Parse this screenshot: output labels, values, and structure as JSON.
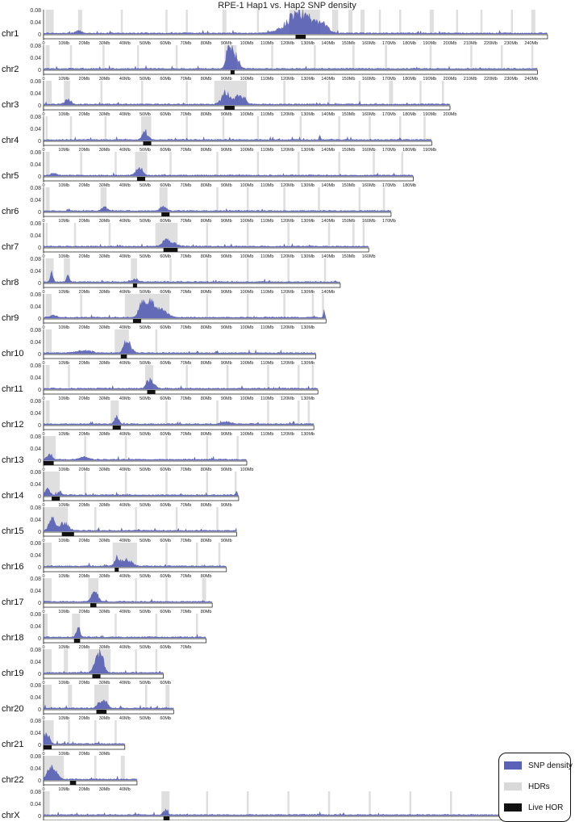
{
  "chart_data": {
    "type": "area",
    "title": "RPE-1 Hap1 vs. Hap2 SNP density",
    "y_ticks": [
      "0.08",
      "0.04",
      "0"
    ],
    "ylim": [
      0,
      0.08
    ],
    "x_unit": "Mb",
    "colors": {
      "snp": "#4e57b2",
      "hdr": "#d9d9d9",
      "hor": "#111111"
    },
    "legend": {
      "placement": "bottom-right",
      "items": [
        {
          "label": "SNP density",
          "color": "#5a62b8"
        },
        {
          "label": "HDRs",
          "color": "#d9d9d9"
        },
        {
          "label": "Live HOR",
          "color": "#111111"
        }
      ]
    },
    "chromosomes": [
      {
        "name": "chr1",
        "length": 248,
        "tick_max": 240,
        "hor": [
          124,
          129
        ],
        "peaks": [
          [
            125,
            0.08,
            8
          ],
          [
            133,
            0.035,
            6
          ],
          [
            138,
            0.02,
            3
          ],
          [
            17,
            0.01,
            2
          ]
        ],
        "hdrs": [
          [
            1,
            5
          ],
          [
            17,
            19
          ],
          [
            38,
            39
          ],
          [
            60,
            61
          ],
          [
            70,
            71
          ],
          [
            88,
            90
          ],
          [
            105,
            106
          ],
          [
            121,
            136
          ],
          [
            142,
            145
          ],
          [
            150,
            152
          ],
          [
            156,
            158
          ],
          [
            165,
            166
          ],
          [
            175,
            176
          ],
          [
            190,
            192
          ],
          [
            203,
            204
          ],
          [
            215,
            216
          ],
          [
            230,
            231
          ],
          [
            240,
            242
          ]
        ]
      },
      {
        "name": "chr2",
        "length": 243,
        "tick_max": 240,
        "hor": [
          92,
          94
        ],
        "peaks": [
          [
            93,
            0.08,
            3
          ],
          [
            91,
            0.05,
            1.5
          ]
        ],
        "hdrs": [
          [
            1,
            3
          ],
          [
            13,
            14
          ],
          [
            29,
            30
          ],
          [
            46,
            47
          ],
          [
            65,
            66
          ],
          [
            89,
            95
          ],
          [
            112,
            113
          ],
          [
            133,
            134
          ],
          [
            152,
            153
          ],
          [
            168,
            169
          ],
          [
            190,
            191
          ],
          [
            210,
            211
          ],
          [
            225,
            226
          ],
          [
            240,
            241
          ]
        ]
      },
      {
        "name": "chr3",
        "length": 200,
        "tick_max": 200,
        "hor": [
          89,
          94
        ],
        "peaks": [
          [
            90,
            0.05,
            3
          ],
          [
            96,
            0.04,
            2
          ],
          [
            99,
            0.025,
            1.5
          ],
          [
            12,
            0.02,
            2
          ]
        ],
        "hdrs": [
          [
            1,
            4
          ],
          [
            10,
            13
          ],
          [
            28,
            29
          ],
          [
            48,
            49
          ],
          [
            70,
            71
          ],
          [
            84,
            100
          ],
          [
            118,
            119
          ],
          [
            140,
            141
          ],
          [
            155,
            156
          ],
          [
            170,
            172
          ],
          [
            185,
            186
          ],
          [
            196,
            197
          ]
        ]
      },
      {
        "name": "chr4",
        "length": 191,
        "tick_max": 190,
        "hor": [
          49,
          53
        ],
        "peaks": [
          [
            50,
            0.035,
            2
          ],
          [
            136,
            0.025,
            0.5
          ]
        ],
        "hdrs": [
          [
            1,
            2
          ],
          [
            13,
            14
          ],
          [
            30,
            31
          ],
          [
            48,
            53
          ],
          [
            70,
            71
          ],
          [
            88,
            89
          ],
          [
            105,
            106
          ],
          [
            126,
            127
          ],
          [
            145,
            146
          ],
          [
            160,
            161
          ],
          [
            175,
            176
          ],
          [
            187,
            188
          ]
        ]
      },
      {
        "name": "chr5",
        "length": 182,
        "tick_max": 180,
        "hor": [
          46,
          50
        ],
        "peaks": [
          [
            47,
            0.04,
            2
          ],
          [
            5,
            0.01,
            2
          ]
        ],
        "hdrs": [
          [
            1,
            3
          ],
          [
            18,
            19
          ],
          [
            35,
            36
          ],
          [
            45,
            51
          ],
          [
            62,
            63
          ],
          [
            85,
            86
          ],
          [
            105,
            106
          ],
          [
            125,
            126
          ],
          [
            145,
            146
          ],
          [
            162,
            163
          ],
          [
            176,
            177
          ]
        ]
      },
      {
        "name": "chr6",
        "length": 171,
        "tick_max": 170,
        "hor": [
          58,
          62
        ],
        "peaks": [
          [
            59,
            0.02,
            2
          ],
          [
            30,
            0.015,
            2
          ]
        ],
        "hdrs": [
          [
            1,
            3
          ],
          [
            28,
            31
          ],
          [
            57,
            61
          ],
          [
            85,
            86
          ],
          [
            100,
            101
          ],
          [
            118,
            119
          ],
          [
            135,
            136
          ],
          [
            155,
            156
          ],
          [
            167,
            168
          ]
        ]
      },
      {
        "name": "chr7",
        "length": 160,
        "tick_max": 160,
        "hor": [
          59,
          66
        ],
        "peaks": [
          [
            62,
            0.02,
            4
          ],
          [
            60,
            0.015,
            2
          ]
        ],
        "hdrs": [
          [
            1,
            2
          ],
          [
            15,
            16
          ],
          [
            32,
            33
          ],
          [
            55,
            66
          ],
          [
            80,
            81
          ],
          [
            100,
            101
          ],
          [
            120,
            121
          ],
          [
            140,
            141
          ],
          [
            152,
            153
          ],
          [
            157,
            158
          ]
        ]
      },
      {
        "name": "chr8",
        "length": 146,
        "tick_max": 140,
        "hor": [
          44,
          46
        ],
        "peaks": [
          [
            4,
            0.04,
            1
          ],
          [
            12,
            0.025,
            1
          ],
          [
            45,
            0.015,
            2
          ]
        ],
        "hdrs": [
          [
            1,
            5
          ],
          [
            10,
            13
          ],
          [
            43,
            46
          ],
          [
            62,
            63
          ],
          [
            80,
            81
          ],
          [
            100,
            101
          ],
          [
            120,
            121
          ],
          [
            138,
            139
          ]
        ]
      },
      {
        "name": "chr9",
        "length": 139,
        "tick_max": 130,
        "hor": [
          44,
          48
        ],
        "peaks": [
          [
            52,
            0.08,
            3
          ],
          [
            48,
            0.05,
            2
          ],
          [
            58,
            0.03,
            4
          ],
          [
            138,
            0.04,
            0.4
          ],
          [
            5,
            0.01,
            2
          ]
        ],
        "hdrs": [
          [
            1,
            4
          ],
          [
            18,
            19
          ],
          [
            40,
            62
          ],
          [
            80,
            81
          ],
          [
            100,
            101
          ],
          [
            118,
            119
          ],
          [
            132,
            133
          ],
          [
            137,
            138
          ]
        ]
      },
      {
        "name": "chr10",
        "length": 134,
        "tick_max": 130,
        "hor": [
          38,
          41
        ],
        "peaks": [
          [
            42,
            0.04,
            2
          ],
          [
            40,
            0.03,
            1.5
          ],
          [
            20,
            0.01,
            5
          ]
        ],
        "hdrs": [
          [
            1,
            4
          ],
          [
            35,
            42
          ],
          [
            55,
            56
          ]
        ]
      },
      {
        "name": "chr11",
        "length": 135,
        "tick_max": 130,
        "hor": [
          51,
          55
        ],
        "peaks": [
          [
            52,
            0.035,
            2
          ],
          [
            54,
            0.015,
            2
          ]
        ],
        "hdrs": [
          [
            1,
            3
          ],
          [
            12,
            13
          ],
          [
            50,
            54
          ],
          [
            70,
            71
          ],
          [
            90,
            91
          ],
          [
            110,
            111
          ],
          [
            125,
            126
          ],
          [
            132,
            133
          ]
        ]
      },
      {
        "name": "chr12",
        "length": 133,
        "tick_max": 130,
        "hor": [
          34,
          38
        ],
        "peaks": [
          [
            36,
            0.03,
            1.5
          ],
          [
            90,
            0.01,
            3
          ]
        ],
        "hdrs": [
          [
            1,
            3
          ],
          [
            33,
            37
          ],
          [
            60,
            61
          ],
          [
            85,
            86
          ],
          [
            110,
            111
          ],
          [
            125,
            126
          ],
          [
            130,
            131
          ]
        ]
      },
      {
        "name": "chr13",
        "length": 100,
        "tick_max": 100,
        "hor": [
          0,
          5
        ],
        "peaks": [
          [
            3,
            0.03,
            1.5
          ],
          [
            20,
            0.01,
            3
          ]
        ],
        "hdrs": [
          [
            0,
            6
          ],
          [
            20,
            21
          ],
          [
            40,
            41
          ],
          [
            60,
            61
          ],
          [
            80,
            81
          ],
          [
            95,
            96
          ]
        ]
      },
      {
        "name": "chr14",
        "length": 96,
        "tick_max": 90,
        "hor": [
          4,
          8
        ],
        "peaks": [
          [
            2,
            0.03,
            1.5
          ],
          [
            8,
            0.02,
            1
          ],
          [
            95,
            0.015,
            0.5
          ]
        ],
        "hdrs": [
          [
            0,
            8
          ],
          [
            20,
            21
          ],
          [
            40,
            41
          ],
          [
            60,
            61
          ],
          [
            80,
            81
          ],
          [
            94,
            95
          ]
        ]
      },
      {
        "name": "chr15",
        "length": 95,
        "tick_max": 90,
        "hor": [
          9,
          15
        ],
        "peaks": [
          [
            4,
            0.05,
            2
          ],
          [
            10,
            0.035,
            3
          ]
        ],
        "hdrs": [
          [
            0,
            12
          ],
          [
            25,
            26
          ],
          [
            45,
            46
          ],
          [
            65,
            66
          ],
          [
            85,
            86
          ]
        ]
      },
      {
        "name": "chr16",
        "length": 90,
        "tick_max": 80,
        "hor": [
          35,
          37
        ],
        "peaks": [
          [
            40,
            0.03,
            4
          ],
          [
            36,
            0.02,
            1.5
          ]
        ],
        "hdrs": [
          [
            0,
            4
          ],
          [
            34,
            46
          ],
          [
            60,
            61
          ],
          [
            75,
            76
          ],
          [
            86,
            87
          ]
        ]
      },
      {
        "name": "chr17",
        "length": 83,
        "tick_max": 80,
        "hor": [
          23,
          26
        ],
        "peaks": [
          [
            26,
            0.04,
            1.5
          ],
          [
            24,
            0.025,
            1.5
          ]
        ],
        "hdrs": [
          [
            0,
            4
          ],
          [
            22,
            27
          ],
          [
            45,
            46
          ],
          [
            60,
            61
          ],
          [
            78,
            80
          ]
        ]
      },
      {
        "name": "chr18",
        "length": 80,
        "tick_max": 70,
        "hor": [
          15,
          18
        ],
        "peaks": [
          [
            17,
            0.04,
            1.2
          ]
        ],
        "hdrs": [
          [
            0,
            2
          ],
          [
            14,
            18
          ],
          [
            35,
            36
          ],
          [
            55,
            56
          ],
          [
            75,
            76
          ]
        ]
      },
      {
        "name": "chr19",
        "length": 59,
        "tick_max": 60,
        "hor": [
          24,
          28
        ],
        "peaks": [
          [
            27,
            0.08,
            1.5
          ],
          [
            29,
            0.06,
            1.5
          ],
          [
            25,
            0.04,
            1.5
          ]
        ],
        "hdrs": [
          [
            0,
            4
          ],
          [
            10,
            12
          ],
          [
            22,
            33
          ],
          [
            45,
            46
          ],
          [
            55,
            56
          ]
        ]
      },
      {
        "name": "chr20",
        "length": 64,
        "tick_max": 60,
        "hor": [
          26,
          31
        ],
        "peaks": [
          [
            30,
            0.04,
            2
          ],
          [
            27,
            0.02,
            1.5
          ]
        ],
        "hdrs": [
          [
            0,
            4
          ],
          [
            12,
            14
          ],
          [
            25,
            32
          ],
          [
            50,
            51
          ],
          [
            60,
            62
          ]
        ]
      },
      {
        "name": "chr21",
        "length": 40,
        "tick_max": 30,
        "hor": [
          0,
          4
        ],
        "peaks": [
          [
            1,
            0.04,
            1.5
          ],
          [
            3,
            0.02,
            1
          ]
        ],
        "hdrs": [
          [
            0,
            5
          ],
          [
            12,
            13
          ],
          [
            25,
            26
          ],
          [
            35,
            36
          ]
        ]
      },
      {
        "name": "chr22",
        "length": 46,
        "tick_max": 40,
        "hor": [
          13,
          16
        ],
        "peaks": [
          [
            3,
            0.05,
            2
          ],
          [
            6,
            0.035,
            2
          ]
        ],
        "hdrs": [
          [
            0,
            10
          ],
          [
            25,
            26
          ],
          [
            38,
            40
          ]
        ]
      },
      {
        "name": "chrX",
        "length": 234,
        "tick_max": 220,
        "hor": [
          59,
          62
        ],
        "peaks": [
          [
            60,
            0.02,
            1.5
          ]
        ],
        "hdrs": [
          [
            0,
            3
          ],
          [
            58,
            62
          ],
          [
            80,
            81
          ],
          [
            100,
            101
          ],
          [
            120,
            121
          ],
          [
            140,
            141
          ],
          [
            160,
            161
          ],
          [
            180,
            181
          ],
          [
            200,
            201
          ],
          [
            225,
            226
          ]
        ]
      }
    ]
  }
}
